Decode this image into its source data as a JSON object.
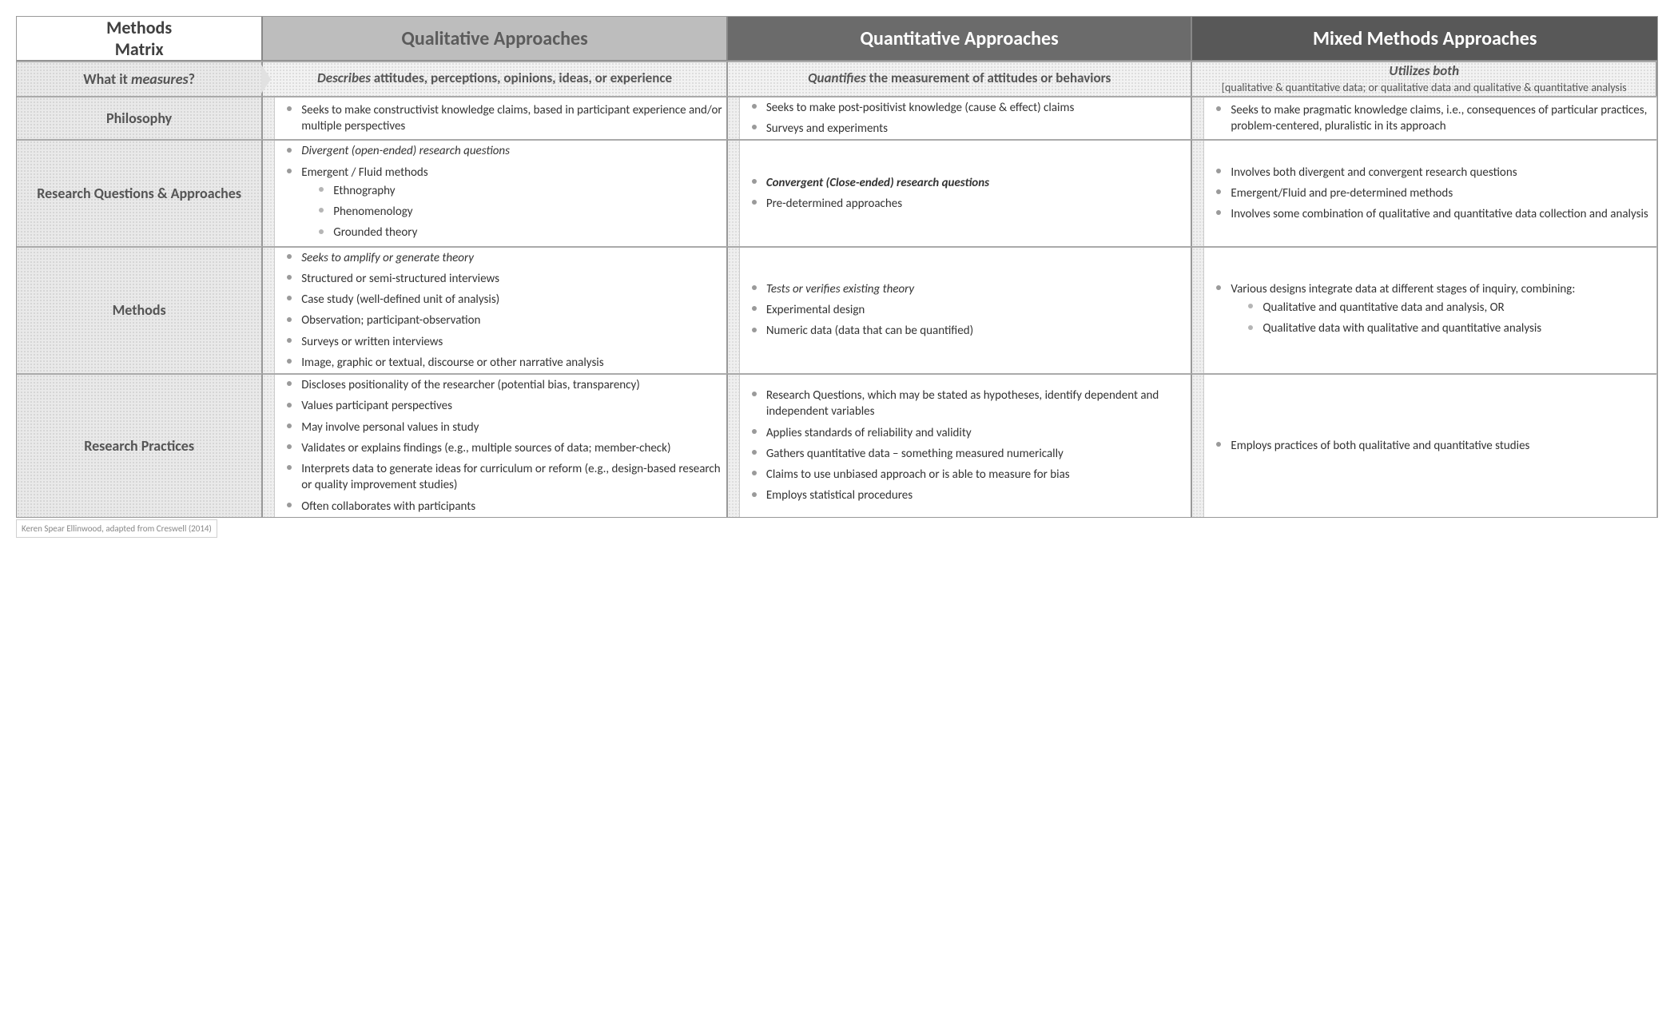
{
  "colors": {
    "header_qual_bg": "#bdbdbd",
    "header_quant_bg": "#6b6b6b",
    "header_mixed_bg": "#585858",
    "dot_bg": "#d6d6d6",
    "border": "#999999",
    "text": "#333333"
  },
  "table": {
    "type": "matrix",
    "title": "Methods Matrix",
    "columns": [
      {
        "key": "qual",
        "label": "Qualitative Approaches"
      },
      {
        "key": "quant",
        "label": "Quantitative Approaches"
      },
      {
        "key": "mixed",
        "label": "Mixed Methods Approaches"
      }
    ],
    "rows": [
      {
        "key": "measures",
        "label_html": "What it <span class='em'>measures</span>?",
        "kind": "summary",
        "cells": {
          "qual": {
            "lead": "Describes",
            "rest": " attitudes, perceptions, opinions, ideas, or experience"
          },
          "quant": {
            "lead": "Quantifies",
            "rest": " the measurement of attitudes or behaviors"
          },
          "mixed": {
            "lead": "Utilizes both",
            "sub": "[qualitative & quantitative data; or qualitative data and qualitative & quantitative analysis"
          }
        }
      },
      {
        "key": "philosophy",
        "label": "Philosophy",
        "kind": "bullets",
        "cells": {
          "qual": [
            {
              "text": "Seeks to make constructivist knowledge claims, based in participant experience and/or multiple perspectives"
            }
          ],
          "quant": [
            {
              "text": "Seeks to make post-positivist knowledge (cause & effect) claims"
            },
            {
              "text": "Surveys and experiments"
            }
          ],
          "mixed": [
            {
              "text": "Seeks to make pragmatic knowledge claims, i.e., consequences of particular practices, problem-centered, pluralistic in its approach"
            }
          ]
        }
      },
      {
        "key": "rq",
        "label": "Research Questions & Approaches",
        "kind": "bullets",
        "cells": {
          "qual": [
            {
              "text": "Divergent (open-ended) research questions",
              "style": "italic"
            },
            {
              "text": "Emergent / Fluid methods",
              "children": [
                {
                  "text": "Ethnography"
                },
                {
                  "text": "Phenomenology"
                },
                {
                  "text": "Grounded theory"
                }
              ]
            }
          ],
          "quant": [
            {
              "text": "Convergent (Close-ended) research questions",
              "style": "bolditalic"
            },
            {
              "text": "Pre-determined approaches"
            }
          ],
          "mixed": [
            {
              "text": "Involves both divergent and convergent research questions"
            },
            {
              "text": "Emergent/Fluid and pre-determined methods"
            },
            {
              "text": "Involves some combination of qualitative and quantitative data collection and analysis"
            }
          ]
        }
      },
      {
        "key": "methods",
        "label": "Methods",
        "kind": "bullets",
        "cells": {
          "qual": [
            {
              "text": "Seeks to amplify or generate theory",
              "style": "italic"
            },
            {
              "text": "Structured or semi-structured interviews"
            },
            {
              "text": "Case study (well-defined unit of analysis)"
            },
            {
              "text": "Observation; participant-observation"
            },
            {
              "text": "Surveys or written interviews"
            },
            {
              "text": "Image, graphic or textual, discourse or other narrative analysis"
            }
          ],
          "quant": [
            {
              "text": "Tests or verifies existing theory",
              "style": "italic"
            },
            {
              "text": "Experimental design"
            },
            {
              "text": "Numeric data (data that can be quantified)"
            }
          ],
          "mixed": [
            {
              "text": "Various designs integrate data at different stages of inquiry, combining:",
              "children": [
                {
                  "text": "Qualitative and quantitative data and analysis, OR"
                },
                {
                  "text": "Qualitative data with qualitative and quantitative analysis"
                }
              ]
            }
          ]
        }
      },
      {
        "key": "practices",
        "label": "Research Practices",
        "kind": "bullets",
        "cells": {
          "qual": [
            {
              "text": "Discloses positionality of the researcher (potential bias, transparency)"
            },
            {
              "text": "Values participant perspectives"
            },
            {
              "text": "May involve personal values in study"
            },
            {
              "text": "Validates or explains findings (e.g., multiple sources of data; member-check)"
            },
            {
              "text": "Interprets data to generate ideas for curriculum or reform (e.g., design-based research or quality improvement studies)"
            },
            {
              "text": "Often collaborates with participants"
            }
          ],
          "quant": [
            {
              "text": "Research Questions, which may be stated as hypotheses, identify dependent and independent variables"
            },
            {
              "text": "Applies standards of reliability and validity"
            },
            {
              "text": "Gathers quantitative data – something measured numerically"
            },
            {
              "text": "Claims to use unbiased approach or is able to measure for bias"
            },
            {
              "text": "Employs statistical procedures"
            }
          ],
          "mixed": [
            {
              "text": "Employs practices of both qualitative and quantitative studies"
            }
          ]
        }
      }
    ],
    "footnote": "Keren Spear Ellinwood, adapted from Creswell (2014)"
  }
}
